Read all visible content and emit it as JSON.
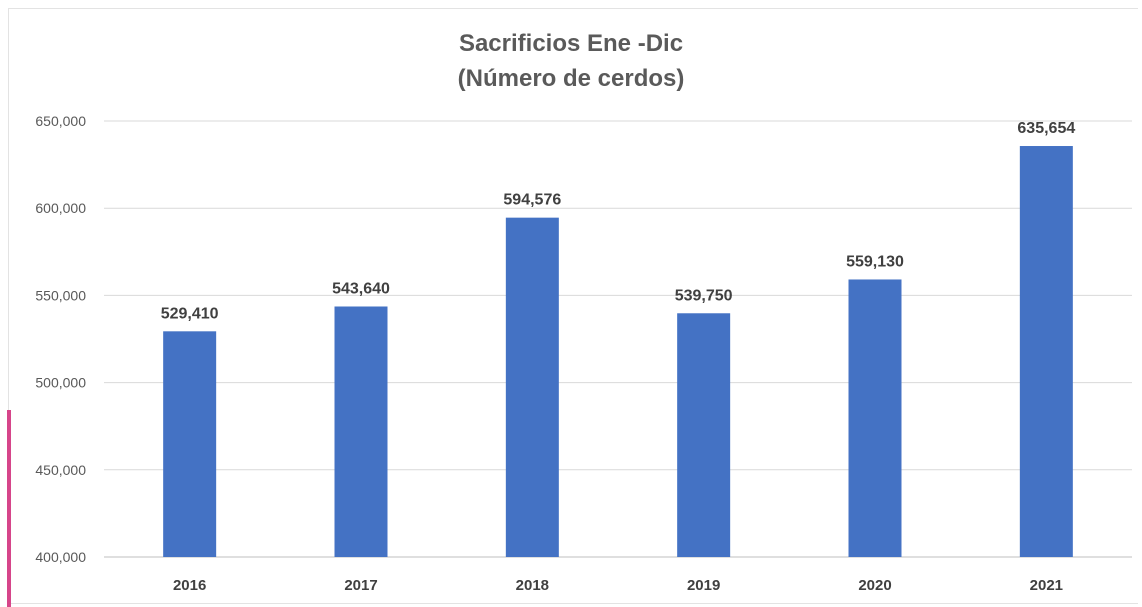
{
  "chart_data": {
    "type": "bar",
    "title": "Sacrificios Ene -Dic",
    "subtitle": "(Número de cerdos)",
    "categories": [
      "2016",
      "2017",
      "2018",
      "2019",
      "2020",
      "2021"
    ],
    "values": [
      529410,
      543640,
      594576,
      539750,
      559130,
      635654
    ],
    "value_labels": [
      "529,410",
      "543,640",
      "594,576",
      "539,750",
      "559,130",
      "635,654"
    ],
    "ylim": [
      400000,
      650000
    ],
    "yticks": [
      400000,
      450000,
      500000,
      550000,
      600000,
      650000
    ],
    "ytick_labels": [
      "400,000",
      "450,000",
      "500,000",
      "550,000",
      "600,000",
      "650,000"
    ],
    "grid": true,
    "bar_color": "#4472c4",
    "grid_color": "#d9d9d9"
  }
}
